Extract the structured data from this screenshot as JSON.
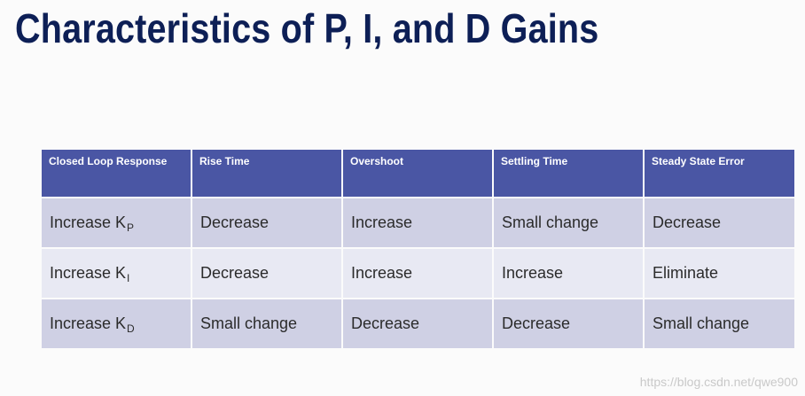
{
  "title": "Characteristics of P, I, and D Gains",
  "table": {
    "headers": [
      "Closed Loop Response",
      "Rise Time",
      "Overshoot",
      "Settling Time",
      "Steady State Error"
    ],
    "rows": [
      {
        "label": "Increase K",
        "subscript": "P",
        "cells": [
          "Decrease",
          "Increase",
          "Small change",
          "Decrease"
        ]
      },
      {
        "label": "Increase K",
        "subscript": "I",
        "cells": [
          "Decrease",
          "Increase",
          "Increase",
          "Eliminate"
        ]
      },
      {
        "label": "Increase K",
        "subscript": "D",
        "cells": [
          "Small change",
          "Decrease",
          "Decrease",
          "Small change"
        ]
      }
    ]
  },
  "colors": {
    "title": "#0d1f56",
    "header_bg": "#4a56a4",
    "row_dark": "#cfd0e4",
    "row_light": "#e8e9f3"
  },
  "watermark": "https://blog.csdn.net/qwe900"
}
